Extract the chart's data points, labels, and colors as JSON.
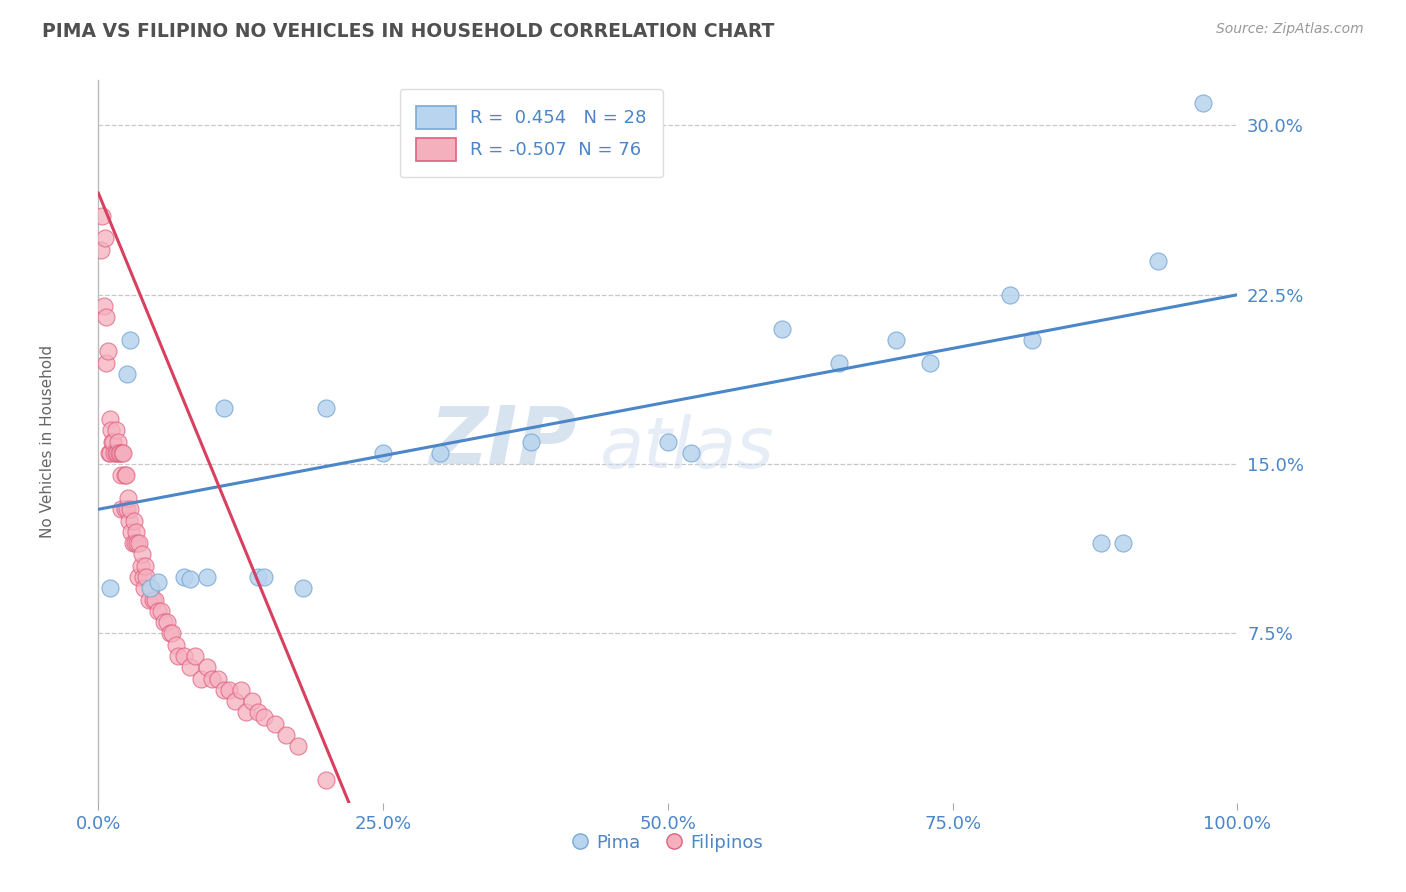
{
  "title": "PIMA VS FILIPINO NO VEHICLES IN HOUSEHOLD CORRELATION CHART",
  "source_text": "Source: ZipAtlas.com",
  "ylabel": "No Vehicles in Household",
  "watermark": "ZIPatlas",
  "xlim": [
    0.0,
    100.0
  ],
  "ylim": [
    0.0,
    0.32
  ],
  "yticks": [
    0.075,
    0.15,
    0.225,
    0.3
  ],
  "ytick_labels": [
    "7.5%",
    "15.0%",
    "22.5%",
    "30.0%"
  ],
  "xticks": [
    0.0,
    25.0,
    50.0,
    75.0,
    100.0
  ],
  "xtick_labels": [
    "0.0%",
    "25.0%",
    "50.0%",
    "75.0%",
    "100.0%"
  ],
  "grid_color": "#c8c8c8",
  "background_color": "#ffffff",
  "pima_color": "#b8d4ee",
  "filipinos_color": "#f5b0be",
  "pima_edge_color": "#7aa8d4",
  "filipinos_edge_color": "#e06080",
  "pima_line_color": "#4a86c8",
  "filipinos_line_color": "#d84060",
  "pima_R": 0.454,
  "pima_N": 28,
  "filipinos_R": -0.507,
  "filipinos_N": 76,
  "legend_label_pima": "Pima",
  "legend_label_filipinos": "Filipinos",
  "title_color": "#505050",
  "axis_color": "#4a86c8",
  "pima_x": [
    1.0,
    2.5,
    2.8,
    4.5,
    5.2,
    7.5,
    8.0,
    9.5,
    11.0,
    14.0,
    14.5,
    18.0,
    20.0,
    25.0,
    30.0,
    38.0,
    50.0,
    52.0,
    60.0,
    65.0,
    70.0,
    73.0,
    80.0,
    82.0,
    88.0,
    90.0,
    93.0,
    97.0
  ],
  "pima_y": [
    0.095,
    0.19,
    0.205,
    0.095,
    0.098,
    0.1,
    0.099,
    0.1,
    0.175,
    0.1,
    0.1,
    0.095,
    0.175,
    0.155,
    0.155,
    0.16,
    0.16,
    0.155,
    0.21,
    0.195,
    0.205,
    0.195,
    0.225,
    0.205,
    0.115,
    0.115,
    0.24,
    0.31
  ],
  "filipinos_x": [
    0.2,
    0.3,
    0.5,
    0.6,
    0.7,
    0.7,
    0.8,
    0.9,
    1.0,
    1.0,
    1.1,
    1.2,
    1.3,
    1.4,
    1.5,
    1.5,
    1.6,
    1.7,
    1.8,
    1.9,
    2.0,
    2.0,
    2.1,
    2.2,
    2.3,
    2.3,
    2.4,
    2.5,
    2.6,
    2.7,
    2.8,
    2.9,
    3.0,
    3.1,
    3.2,
    3.3,
    3.4,
    3.5,
    3.6,
    3.7,
    3.8,
    3.9,
    4.0,
    4.1,
    4.2,
    4.4,
    4.6,
    4.8,
    5.0,
    5.2,
    5.5,
    5.8,
    6.0,
    6.3,
    6.5,
    6.8,
    7.0,
    7.5,
    8.0,
    8.5,
    9.0,
    9.5,
    10.0,
    10.5,
    11.0,
    11.5,
    12.0,
    12.5,
    13.0,
    13.5,
    14.0,
    14.5,
    15.5,
    16.5,
    17.5,
    20.0
  ],
  "filipinos_y": [
    0.245,
    0.26,
    0.22,
    0.25,
    0.215,
    0.195,
    0.2,
    0.155,
    0.17,
    0.155,
    0.165,
    0.16,
    0.16,
    0.155,
    0.155,
    0.165,
    0.155,
    0.16,
    0.155,
    0.155,
    0.145,
    0.13,
    0.155,
    0.155,
    0.145,
    0.13,
    0.145,
    0.13,
    0.135,
    0.125,
    0.13,
    0.12,
    0.115,
    0.125,
    0.115,
    0.12,
    0.115,
    0.1,
    0.115,
    0.105,
    0.11,
    0.1,
    0.095,
    0.105,
    0.1,
    0.09,
    0.095,
    0.09,
    0.09,
    0.085,
    0.085,
    0.08,
    0.08,
    0.075,
    0.075,
    0.07,
    0.065,
    0.065,
    0.06,
    0.065,
    0.055,
    0.06,
    0.055,
    0.055,
    0.05,
    0.05,
    0.045,
    0.05,
    0.04,
    0.045,
    0.04,
    0.038,
    0.035,
    0.03,
    0.025,
    0.01
  ],
  "pima_trend_x0": 0.0,
  "pima_trend_y0": 0.13,
  "pima_trend_x1": 100.0,
  "pima_trend_y1": 0.225,
  "filipinos_trend_x0": 0.0,
  "filipinos_trend_y0": 0.27,
  "filipinos_trend_x1": 22.0,
  "filipinos_trend_y1": 0.0
}
